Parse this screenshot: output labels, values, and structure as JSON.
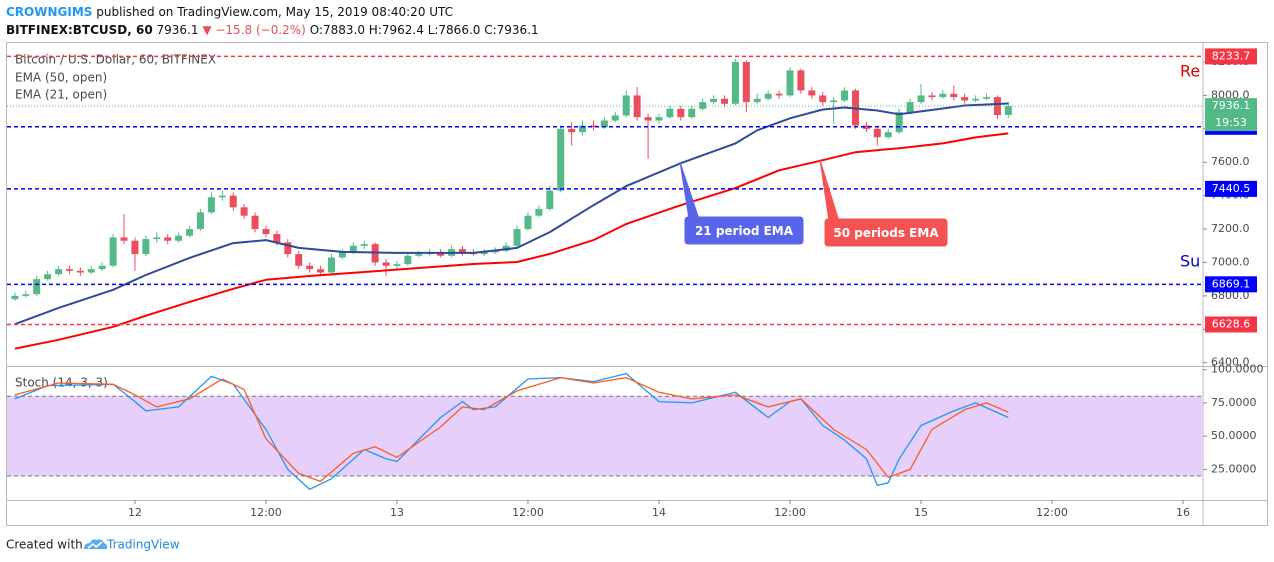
{
  "header": {
    "publisher": "CROWNGIMS",
    "published": "published on TradingView.com, May 15, 2019 08:40:20 UTC",
    "symbol": "BITFINEX:BTCUSD, 60",
    "last": "7936.1",
    "change": "▼ −15.8 (−0.2%)",
    "ohlc": [
      "O:7883.0",
      "H:7962.4",
      "L:7866.0",
      "C:7936.1"
    ]
  },
  "footer": {
    "text": "Created with",
    "brand": "TradingView"
  },
  "chart_data": [
    {
      "type": "candlestick",
      "title": "Bitcoin / U.S. Dollar, 60, BITFINEX",
      "up_color": "#53b987",
      "down_color": "#eb4d5c",
      "x": [
        -11,
        -10,
        -9,
        -8,
        -7,
        -6,
        -5,
        -4,
        -3,
        -2,
        -1,
        0,
        1,
        2,
        3,
        4,
        5,
        6,
        7,
        8,
        9,
        10,
        11,
        12,
        13,
        14,
        15,
        16,
        17,
        18,
        19,
        20,
        21,
        22,
        23,
        24,
        25,
        26,
        27,
        28,
        29,
        30,
        31,
        32,
        33,
        34,
        35,
        36,
        37,
        38,
        39,
        40,
        41,
        42,
        43,
        44,
        45,
        46,
        47,
        48,
        49,
        50,
        51,
        52,
        53,
        54,
        55,
        56,
        57,
        58,
        59,
        60,
        61,
        62,
        63,
        64,
        65,
        66,
        67,
        68,
        69,
        70,
        71,
        72,
        73,
        74,
        75,
        76,
        77,
        78,
        79,
        80
      ],
      "open": [
        6780,
        6800,
        6810,
        6900,
        6930,
        6960,
        6950,
        6940,
        6960,
        6980,
        7150,
        7130,
        7050,
        7140,
        7150,
        7130,
        7160,
        7200,
        7300,
        7390,
        7400,
        7330,
        7280,
        7200,
        7170,
        7120,
        7050,
        6980,
        6960,
        6940,
        7030,
        7060,
        7100,
        7110,
        7000,
        6980,
        6990,
        7040,
        7050,
        7060,
        7040,
        7080,
        7060,
        7050,
        7060,
        7070,
        7100,
        7200,
        7280,
        7320,
        7430,
        7800,
        7780,
        7820,
        7810,
        7850,
        7880,
        8000,
        7870,
        7850,
        7870,
        7920,
        7870,
        7920,
        7960,
        7980,
        7950,
        8200,
        7960,
        7980,
        8010,
        8000,
        8150,
        8030,
        8000,
        7960,
        7970,
        8030,
        7820,
        7800,
        7750,
        7780,
        7900,
        7960,
        8000,
        7990,
        8010,
        7990,
        7970,
        7980,
        7990,
        7883
      ],
      "high": [
        6820,
        6830,
        6920,
        6950,
        6980,
        6980,
        6970,
        6980,
        7000,
        7170,
        7290,
        7150,
        7160,
        7180,
        7170,
        7180,
        7220,
        7320,
        7420,
        7430,
        7420,
        7350,
        7300,
        7220,
        7190,
        7140,
        7070,
        7000,
        6980,
        7050,
        7080,
        7120,
        7130,
        7120,
        7020,
        7010,
        7060,
        7070,
        7080,
        7080,
        7100,
        7100,
        7080,
        7080,
        7090,
        7120,
        7220,
        7300,
        7340,
        7460,
        7820,
        7840,
        7850,
        7850,
        7870,
        7900,
        8030,
        8050,
        7890,
        7890,
        7940,
        7940,
        7940,
        7980,
        8000,
        8000,
        8220,
        8210,
        8010,
        8030,
        8030,
        8170,
        8160,
        8050,
        8020,
        7990,
        8050,
        8040,
        7840,
        7820,
        7800,
        7920,
        7980,
        8070,
        8020,
        8030,
        8060,
        8010,
        8000,
        8010,
        8000,
        7962.4
      ],
      "low": [
        6770,
        6790,
        6800,
        6890,
        6920,
        6930,
        6920,
        6930,
        6950,
        6970,
        7110,
        6950,
        7040,
        7120,
        7110,
        7120,
        7150,
        7190,
        7290,
        7370,
        7310,
        7260,
        7180,
        7150,
        7100,
        7030,
        6960,
        6940,
        6920,
        6930,
        7020,
        7050,
        7080,
        6980,
        6920,
        6960,
        6980,
        7030,
        7040,
        7030,
        7030,
        7040,
        7040,
        7040,
        7050,
        7060,
        7090,
        7190,
        7270,
        7310,
        7420,
        7700,
        7760,
        7790,
        7800,
        7840,
        7870,
        7850,
        7620,
        7830,
        7860,
        7850,
        7860,
        7910,
        7950,
        7930,
        7940,
        7900,
        7950,
        7970,
        7980,
        7990,
        8010,
        7980,
        7940,
        7830,
        7960,
        7800,
        7780,
        7700,
        7740,
        7770,
        7890,
        7950,
        7970,
        7980,
        7970,
        7950,
        7960,
        7970,
        7860,
        7866
      ],
      "close": [
        6800,
        6810,
        6900,
        6930,
        6960,
        6950,
        6940,
        6960,
        6980,
        7150,
        7130,
        7050,
        7140,
        7150,
        7130,
        7160,
        7200,
        7300,
        7390,
        7400,
        7330,
        7280,
        7200,
        7170,
        7120,
        7050,
        6980,
        6960,
        6940,
        7030,
        7060,
        7100,
        7110,
        7000,
        6980,
        6990,
        7040,
        7050,
        7060,
        7040,
        7080,
        7060,
        7050,
        7060,
        7070,
        7100,
        7200,
        7280,
        7320,
        7430,
        7800,
        7780,
        7820,
        7810,
        7850,
        7880,
        8000,
        7870,
        7850,
        7870,
        7920,
        7870,
        7920,
        7960,
        7980,
        7950,
        8200,
        7960,
        7980,
        8010,
        8000,
        8150,
        8030,
        8000,
        7960,
        7970,
        8030,
        7820,
        7800,
        7750,
        7780,
        7900,
        7960,
        8000,
        7990,
        8010,
        7990,
        7970,
        7980,
        7990,
        7883,
        7936.1
      ],
      "last_price_color": "#53b987",
      "countdown": "19:53",
      "lines": [
        {
          "name": "EMA (50, open)",
          "color": "#ff0000",
          "x": [
            -11,
            -7,
            -2,
            1,
            5,
            9,
            12,
            16,
            21,
            26,
            31,
            35,
            38,
            42,
            45,
            50,
            55,
            59,
            63,
            66,
            70,
            74,
            77,
            80
          ],
          "values": [
            6484,
            6537,
            6615,
            6681,
            6764,
            6842,
            6896,
            6919,
            6943,
            6967,
            6991,
            7003,
            7051,
            7134,
            7230,
            7343,
            7445,
            7552,
            7612,
            7660,
            7684,
            7713,
            7749,
            7773
          ]
        },
        {
          "name": "EMA (21, open)",
          "color": "#2f4a9a",
          "x": [
            -11,
            -7,
            -2,
            1,
            5,
            9,
            12,
            15,
            19,
            24,
            31,
            35,
            38,
            42,
            45,
            50,
            55,
            57,
            60,
            63,
            65,
            68,
            70,
            74,
            76,
            80
          ],
          "values": [
            6630,
            6728,
            6836,
            6925,
            7027,
            7116,
            7134,
            7087,
            7063,
            7057,
            7057,
            7087,
            7182,
            7343,
            7457,
            7594,
            7713,
            7791,
            7863,
            7916,
            7928,
            7910,
            7887,
            7922,
            7940,
            7952
          ]
        }
      ],
      "levels": [
        {
          "value": 8233.7,
          "color": "#f23645"
        },
        {
          "value": 7812.3,
          "color": "#0000ff"
        },
        {
          "value": 7440.5,
          "color": "#0000ff"
        },
        {
          "value": 6869.1,
          "color": "#0000ff"
        },
        {
          "value": 6628.6,
          "color": "#f23645"
        }
      ],
      "annotations": [
        {
          "text": "21 period EMA",
          "color": "#5865e8"
        },
        {
          "text": "50 periods EMA",
          "color": "#f55353"
        },
        {
          "text": "Re",
          "color": "#e00000"
        },
        {
          "text": "Su",
          "color": "#0000cc"
        }
      ],
      "xlim": [
        -11.72,
        97.83
      ],
      "xticks": [
        {
          "value": 0,
          "label": "12"
        },
        {
          "value": 12,
          "label": "12:00"
        },
        {
          "value": 24,
          "label": "13"
        },
        {
          "value": 36,
          "label": "12:00"
        },
        {
          "value": 48,
          "label": "14"
        },
        {
          "value": 60,
          "label": "12:00"
        },
        {
          "value": 72,
          "label": "15"
        },
        {
          "value": 84,
          "label": "12:00"
        },
        {
          "value": 96,
          "label": "16"
        }
      ],
      "ylim": [
        6380,
        8320
      ],
      "yticks": [
        {
          "value": 6400,
          "label": "6400.0"
        },
        {
          "value": 6600,
          "label": "6600.0"
        },
        {
          "value": 6800,
          "label": "6800.0"
        },
        {
          "value": 7000,
          "label": "7000.0"
        },
        {
          "value": 7200,
          "label": "7200.0"
        },
        {
          "value": 7400,
          "label": "7400.0"
        },
        {
          "value": 7600,
          "label": "7600.0"
        },
        {
          "value": 7800,
          "label": "7800.0"
        },
        {
          "value": 8000,
          "label": "8000.0"
        },
        {
          "value": 8200,
          "label": "8200.0"
        }
      ],
      "grid": false
    },
    {
      "type": "line",
      "title": "Stoch (14, 3, 3)",
      "band": [
        20,
        80
      ],
      "band_color": "#e6cffb",
      "series": [
        {
          "color": "#2196f3",
          "x": [
            -11,
            -8,
            -2,
            0,
            1,
            4,
            7,
            9,
            12,
            14,
            16,
            18,
            21,
            23,
            24,
            28,
            30,
            31,
            33,
            36,
            39,
            42,
            45,
            48,
            51,
            55,
            58,
            60,
            61,
            63,
            65,
            67,
            68,
            69,
            70,
            72,
            75,
            77,
            80
          ],
          "values": [
            78,
            88,
            89,
            76,
            69,
            72,
            95,
            89,
            55,
            25,
            10,
            18,
            40,
            33,
            31,
            64,
            76,
            70,
            72,
            93,
            94,
            91,
            97,
            76,
            75,
            83,
            64,
            76,
            78,
            58,
            47,
            33,
            13,
            15,
            33,
            58,
            69,
            75,
            64
          ]
        },
        {
          "color": "#ff5a1f",
          "x": [
            -11,
            -7,
            -2,
            0,
            2,
            5,
            8,
            10,
            12,
            15,
            17,
            20,
            22,
            24,
            28,
            30,
            32,
            35,
            39,
            42,
            45,
            48,
            51,
            55,
            58,
            61,
            64,
            67,
            69,
            71,
            73,
            76,
            78,
            80
          ],
          "values": [
            81,
            90,
            89,
            81,
            72,
            78,
            93,
            85,
            48,
            22,
            16,
            37,
            42,
            34,
            57,
            72,
            70,
            84,
            94,
            90,
            94,
            83,
            78,
            81,
            72,
            78,
            55,
            40,
            19,
            25,
            55,
            70,
            75,
            68
          ]
        }
      ],
      "xlim": [
        -11.72,
        97.83
      ],
      "ylim": [
        2,
        102
      ],
      "yticks": [
        {
          "value": 25,
          "label": "25.0000"
        },
        {
          "value": 50,
          "label": "50.0000"
        },
        {
          "value": 75,
          "label": "75.0000"
        },
        {
          "value": 100,
          "label": "100.0000"
        }
      ]
    }
  ]
}
